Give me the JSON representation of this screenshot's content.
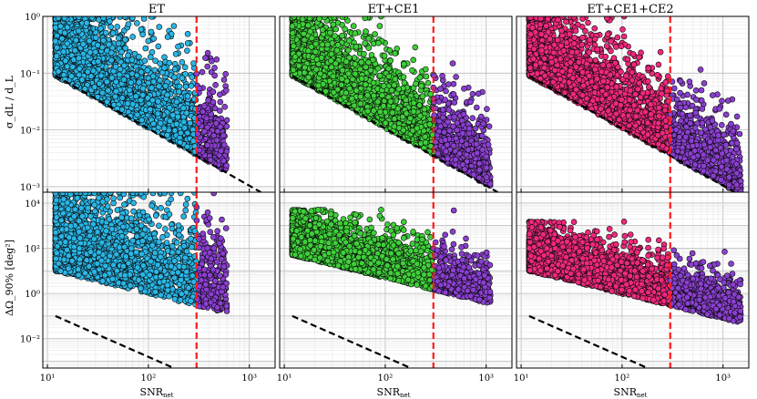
{
  "figure": {
    "columns": [
      "ET",
      "ET+CE1",
      "ET+CE1+CE2"
    ],
    "xlabel": "SNR",
    "xlabel_sub": "net",
    "ylabel_top": "σ_dL / d_L",
    "ylabel_bottom": "ΔΩ_90% [deg²]"
  },
  "chart_data": {
    "type": "scatter",
    "x_scale": "log",
    "y_scale": "log",
    "xlim": [
      9,
      1800
    ],
    "x_ticks": [
      10,
      100,
      1000
    ],
    "x_tick_labels": [
      "10¹",
      "10²",
      "10³"
    ],
    "snr_threshold": 300,
    "colors": {
      "ET": "#29b6e6",
      "ET+CE1": "#3fcf3a",
      "ET+CE1+CE2": "#f0287c",
      "above_threshold": "#8b3fd1",
      "threshold_line": "#ff1a1a",
      "reference_line": "#000000"
    },
    "rows": [
      {
        "ylabel": "σ_dL / d_L",
        "ylim": [
          0.0008,
          1
        ],
        "y_ticks": [
          0.001,
          0.01,
          0.1,
          1
        ],
        "y_tick_labels": [
          "10⁻³",
          "10⁻²",
          "10⁻¹",
          "10⁰"
        ],
        "reference_line": [
          {
            "x": 12,
            "y": 0.09
          },
          {
            "x": 1300,
            "y": 0.0008
          }
        ],
        "panels": [
          {
            "network": "ET",
            "snr_range": [
              12,
              600
            ],
            "y_floor_at_snr12": 0.09,
            "y_top": 1,
            "spread_decades": 1.6,
            "density": 2600
          },
          {
            "network": "ET+CE1",
            "snr_range": [
              12,
              1100
            ],
            "y_floor_at_snr12": 0.09,
            "y_top": 1,
            "spread_decades": 1.3,
            "density": 3200
          },
          {
            "network": "ET+CE1+CE2",
            "snr_range": [
              12,
              1500
            ],
            "y_floor_at_snr12": 0.09,
            "y_top": 1,
            "spread_decades": 1.3,
            "density": 3600
          }
        ]
      },
      {
        "ylabel": "ΔΩ_90% [deg²]",
        "ylim": [
          0.0005,
          30000
        ],
        "y_ticks": [
          0.01,
          1,
          100,
          10000
        ],
        "y_tick_labels": [
          "10⁻²",
          "10⁰",
          "10²",
          "10⁴"
        ],
        "reference_line": [
          {
            "x": 12,
            "y": 0.1
          },
          {
            "x": 200,
            "y": 0.0004
          }
        ],
        "panels": [
          {
            "network": "ET",
            "snr_range": [
              12,
              600
            ],
            "y_floor_at_snr12": 10,
            "y_top": 30000,
            "spread_decades": 4.0,
            "density": 2600
          },
          {
            "network": "ET+CE1",
            "snr_range": [
              12,
              1100
            ],
            "y_floor_at_snr12": 50,
            "y_top": 5000,
            "spread_decades": 2.0,
            "density": 3200
          },
          {
            "network": "ET+CE1+CE2",
            "snr_range": [
              12,
              1500
            ],
            "y_floor_at_snr12": 10,
            "y_top": 1500,
            "spread_decades": 2.0,
            "density": 3600
          }
        ]
      }
    ]
  }
}
